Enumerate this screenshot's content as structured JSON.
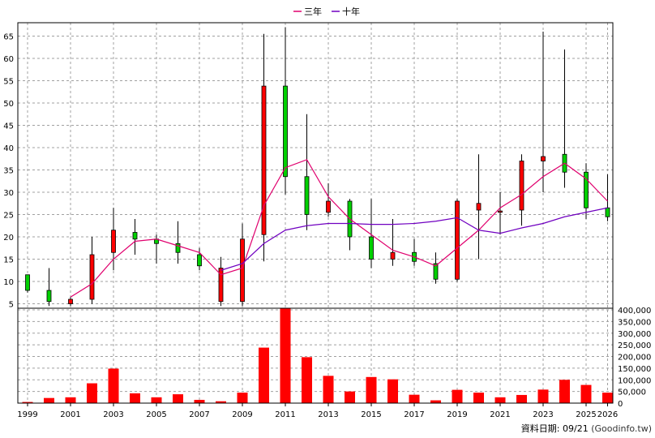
{
  "legend": [
    {
      "label": "三年",
      "color": "#e0006e"
    },
    {
      "label": "十年",
      "color": "#7000c0"
    }
  ],
  "footer": {
    "label": "資料日期: 09/21",
    "source": "(Goodinfo.tw)"
  },
  "chart_data": [
    {
      "type": "candlestick",
      "title": "",
      "ylim": [
        4,
        68
      ],
      "yticks": [
        5,
        10,
        15,
        20,
        25,
        30,
        35,
        40,
        45,
        50,
        55,
        60,
        65
      ],
      "grid": true,
      "legend_position": "top-center",
      "colors": {
        "up": "#ff0000",
        "down": "#00d000"
      },
      "x": [
        1999,
        2000,
        2001,
        2002,
        2003,
        2004,
        2005,
        2006,
        2007,
        2008,
        2009,
        2010,
        2011,
        2012,
        2013,
        2014,
        2015,
        2016,
        2017,
        2018,
        2019,
        2020,
        2021,
        2022,
        2023,
        2024,
        2025,
        2026
      ],
      "open": [
        11.5,
        8.0,
        5.0,
        6.0,
        16.5,
        21.0,
        19.5,
        18.5,
        16.0,
        5.5,
        5.5,
        20.5,
        53.8,
        33.5,
        25.5,
        28.0,
        20.0,
        15.0,
        16.5,
        14.0,
        10.5,
        26.0,
        25.5,
        26.0,
        37.0,
        38.5,
        34.5,
        26.5
      ],
      "close": [
        8.0,
        5.5,
        6.0,
        16.0,
        21.5,
        19.5,
        18.5,
        16.5,
        13.5,
        13.0,
        19.5,
        53.8,
        33.5,
        25.0,
        28.0,
        20.0,
        15.0,
        16.5,
        14.5,
        10.5,
        28.0,
        27.5,
        25.8,
        37.0,
        38.0,
        34.5,
        26.5,
        24.5
      ],
      "high": [
        11.5,
        13.0,
        6.5,
        20.0,
        26.5,
        24.0,
        20.5,
        23.5,
        17.5,
        15.5,
        23.0,
        65.5,
        67.0,
        47.5,
        32.0,
        28.5,
        28.5,
        24.0,
        19.5,
        16.5,
        28.5,
        38.5,
        30.0,
        38.5,
        66.0,
        62.0,
        36.5,
        34.0
      ],
      "low": [
        7.5,
        4.5,
        4.5,
        5.0,
        12.5,
        16.0,
        14.0,
        14.0,
        12.5,
        4.5,
        4.5,
        14.5,
        29.5,
        21.5,
        24.5,
        17.0,
        13.0,
        13.5,
        13.5,
        9.5,
        10.0,
        15.0,
        20.5,
        22.5,
        30.0,
        31.0,
        24.0,
        23.5
      ],
      "series": [
        {
          "name": "三年",
          "color": "#e0006e",
          "x": [
            2001,
            2002,
            2003,
            2004,
            2005,
            2006,
            2007,
            2008,
            2009,
            2010,
            2011,
            2012,
            2013,
            2014,
            2015,
            2016,
            2017,
            2018,
            2019,
            2020,
            2021,
            2022,
            2023,
            2024,
            2025,
            2026
          ],
          "values": [
            6.5,
            9.5,
            15.0,
            19.0,
            19.5,
            18.0,
            16.5,
            11.5,
            13.0,
            27.0,
            35.5,
            37.3,
            29.0,
            24.0,
            20.5,
            17.0,
            15.5,
            13.5,
            17.5,
            21.5,
            26.5,
            29.5,
            33.5,
            36.5,
            33.0,
            28.0
          ]
        },
        {
          "name": "十年",
          "color": "#7000c0",
          "x": [
            2008,
            2009,
            2010,
            2011,
            2012,
            2013,
            2014,
            2015,
            2016,
            2017,
            2018,
            2019,
            2020,
            2021,
            2022,
            2023,
            2024,
            2025,
            2026
          ],
          "values": [
            12.5,
            14.0,
            18.5,
            21.5,
            22.5,
            23.0,
            23.0,
            22.8,
            22.8,
            23.0,
            23.5,
            24.3,
            21.5,
            20.8,
            22.0,
            23.0,
            24.5,
            25.5,
            26.5
          ]
        }
      ],
      "xtick_labels": [
        "1999",
        "2001",
        "2003",
        "2005",
        "2007",
        "2009",
        "2011",
        "2013",
        "2015",
        "2017",
        "2019",
        "2021",
        "2023",
        "2025",
        "2026"
      ]
    },
    {
      "type": "bar",
      "title": "",
      "ylim": [
        0,
        400000
      ],
      "yticks": [
        0,
        50000,
        100000,
        150000,
        200000,
        250000,
        300000,
        350000,
        400000
      ],
      "ytick_labels": [
        "0",
        "50,000",
        "100,000",
        "150,000",
        "200,000",
        "250,000",
        "300,000",
        "350,000",
        "400,000"
      ],
      "grid": true,
      "color": "#ff0000",
      "x": [
        1999,
        2000,
        2001,
        2002,
        2003,
        2004,
        2005,
        2006,
        2007,
        2008,
        2009,
        2010,
        2011,
        2012,
        2013,
        2014,
        2015,
        2016,
        2017,
        2018,
        2019,
        2020,
        2021,
        2022,
        2023,
        2024,
        2025,
        2026
      ],
      "values": [
        5000,
        22000,
        25000,
        85000,
        148000,
        42000,
        25000,
        38000,
        14000,
        8000,
        45000,
        238000,
        408000,
        197000,
        117000,
        50000,
        112000,
        102000,
        36000,
        12000,
        57000,
        45000,
        25000,
        35000,
        58000,
        100000,
        78000,
        45000
      ]
    }
  ]
}
